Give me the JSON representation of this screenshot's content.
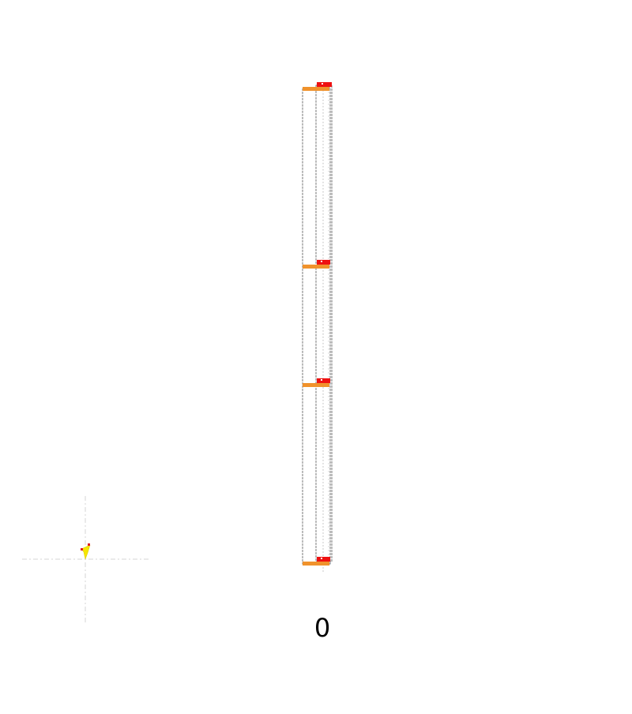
{
  "scene": {
    "level_label": "0",
    "structure": {
      "floor_count": 4,
      "outline_color": "#7a7a7a",
      "floor_beam_color": "#f0922c",
      "floor_marker_color": "#ee1111",
      "center_line_color": "#c8c8c8"
    },
    "origin_gizmo": {
      "icon": "cursor-origin-icon",
      "axis_color": "#d4d4d4",
      "marker_color": "#f5e600",
      "marker_accent_color": "#e02020"
    }
  }
}
